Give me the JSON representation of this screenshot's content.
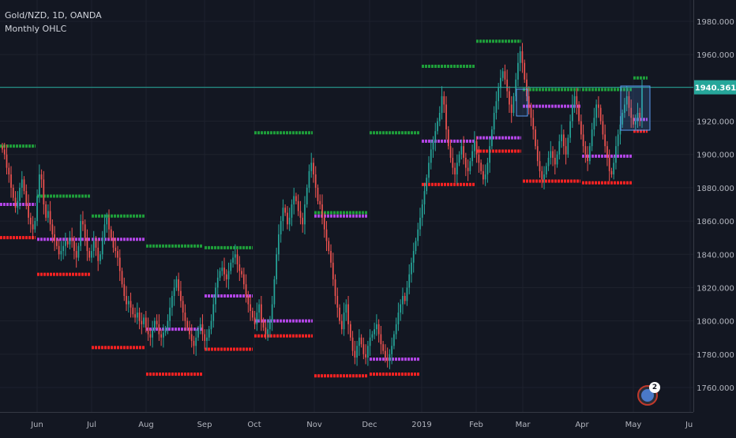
{
  "header": {
    "symbol_line": "Gold/NZD, 1D, OANDA",
    "indicator": "Monthly OHLC"
  },
  "last_price": "1940.361",
  "badge_count": "2",
  "colors": {
    "background": "#131722",
    "up": "#26a69a",
    "down": "#ef5350",
    "high_level": "#1e9e3a",
    "low_level": "#ff2222",
    "mid_level": "#b245e6",
    "price_line": "#26a69a",
    "grid": "#1e222d"
  },
  "chart_data": {
    "type": "line",
    "title": "",
    "xlabel": "",
    "ylabel": "",
    "ylim": [
      1750,
      1990
    ],
    "yticks": [
      "1760.000",
      "1780.000",
      "1800.000",
      "1820.000",
      "1840.000",
      "1860.000",
      "1880.000",
      "1900.000",
      "1920.000",
      "1940.000",
      "1960.000",
      "1980.000"
    ],
    "xticks": [
      "Jun",
      "Jul",
      "Aug",
      "Sep",
      "Oct",
      "Nov",
      "Dec",
      "2019",
      "Feb",
      "Mar",
      "Apr",
      "May",
      "Jul"
    ],
    "last_value": 1940.361,
    "monthly_levels": [
      {
        "month": "May",
        "high": 1905,
        "mid": 1870,
        "low": 1850
      },
      {
        "month": "Jun",
        "high": 1875,
        "mid": 1849,
        "low": 1828
      },
      {
        "month": "Jul",
        "high": 1863,
        "mid": 1849,
        "low": 1784
      },
      {
        "month": "Aug",
        "high": 1845,
        "mid": 1795,
        "low": 1768
      },
      {
        "month": "Sep",
        "high": 1844,
        "mid": 1815,
        "low": 1783
      },
      {
        "month": "Oct",
        "high": 1913,
        "mid": 1800,
        "low": 1791
      },
      {
        "month": "Nov",
        "high": 1865,
        "mid": 1863,
        "low": 1767
      },
      {
        "month": "Dec",
        "high": 1913,
        "mid": 1777,
        "low": 1768
      },
      {
        "month": "Jan",
        "high": 1953,
        "mid": 1908,
        "low": 1882
      },
      {
        "month": "Feb",
        "high": 1968,
        "mid": 1910,
        "low": 1902
      },
      {
        "month": "Mar",
        "high": 1939,
        "mid": 1929,
        "low": 1884
      },
      {
        "month": "Apr",
        "high": 1939,
        "mid": 1899,
        "low": 1883
      },
      {
        "month": "May",
        "high": 1946,
        "mid": 1921,
        "low": 1914
      }
    ],
    "closes": [
      1903,
      1900,
      1892,
      1888,
      1880,
      1874,
      1868,
      1872,
      1880,
      1885,
      1878,
      1870,
      1862,
      1858,
      1855,
      1860,
      1875,
      1888,
      1885,
      1870,
      1862,
      1866,
      1858,
      1852,
      1848,
      1845,
      1840,
      1842,
      1845,
      1848,
      1846,
      1850,
      1848,
      1842,
      1838,
      1845,
      1860,
      1858,
      1850,
      1842,
      1838,
      1842,
      1848,
      1844,
      1836,
      1840,
      1850,
      1858,
      1862,
      1855,
      1850,
      1844,
      1842,
      1838,
      1830,
      1822,
      1815,
      1810,
      1812,
      1808,
      1804,
      1802,
      1805,
      1800,
      1798,
      1802,
      1796,
      1792,
      1790,
      1795,
      1800,
      1798,
      1792,
      1790,
      1793,
      1795,
      1800,
      1808,
      1815,
      1820,
      1825,
      1818,
      1812,
      1805,
      1800,
      1796,
      1792,
      1788,
      1785,
      1790,
      1795,
      1798,
      1792,
      1788,
      1790,
      1795,
      1800,
      1810,
      1820,
      1826,
      1830,
      1832,
      1828,
      1825,
      1830,
      1835,
      1838,
      1840,
      1834,
      1830,
      1828,
      1822,
      1815,
      1810,
      1806,
      1802,
      1798,
      1805,
      1810,
      1800,
      1796,
      1792,
      1795,
      1800,
      1810,
      1825,
      1840,
      1852,
      1860,
      1868,
      1865,
      1858,
      1862,
      1870,
      1875,
      1872,
      1866,
      1862,
      1858,
      1870,
      1880,
      1890,
      1895,
      1888,
      1880,
      1872,
      1870,
      1862,
      1855,
      1848,
      1842,
      1835,
      1825,
      1815,
      1808,
      1800,
      1795,
      1805,
      1810,
      1798,
      1790,
      1782,
      1778,
      1785,
      1790,
      1786,
      1780,
      1778,
      1785,
      1790,
      1792,
      1795,
      1798,
      1792,
      1786,
      1782,
      1778,
      1776,
      1780,
      1785,
      1792,
      1798,
      1805,
      1810,
      1815,
      1812,
      1820,
      1828,
      1835,
      1842,
      1848,
      1855,
      1862,
      1870,
      1878,
      1886,
      1895,
      1903,
      1908,
      1914,
      1920,
      1925,
      1935,
      1930,
      1915,
      1905,
      1898,
      1892,
      1888,
      1895,
      1900,
      1905,
      1898,
      1892,
      1890,
      1896,
      1902,
      1908,
      1900,
      1895,
      1890,
      1885,
      1888,
      1895,
      1905,
      1915,
      1925,
      1932,
      1940,
      1946,
      1950,
      1945,
      1938,
      1930,
      1925,
      1935,
      1945,
      1955,
      1962,
      1955,
      1945,
      1935,
      1928,
      1922,
      1915,
      1905,
      1896,
      1890,
      1885,
      1888,
      1893,
      1898,
      1902,
      1898,
      1894,
      1900,
      1908,
      1912,
      1905,
      1900,
      1910,
      1920,
      1930,
      1935,
      1930,
      1920,
      1912,
      1905,
      1900,
      1896,
      1905,
      1915,
      1922,
      1930,
      1928,
      1920,
      1912,
      1905,
      1898,
      1890,
      1888,
      1895,
      1905,
      1912,
      1918,
      1925,
      1930,
      1935,
      1928,
      1922,
      1918,
      1920,
      1925,
      1922,
      1940
    ]
  }
}
